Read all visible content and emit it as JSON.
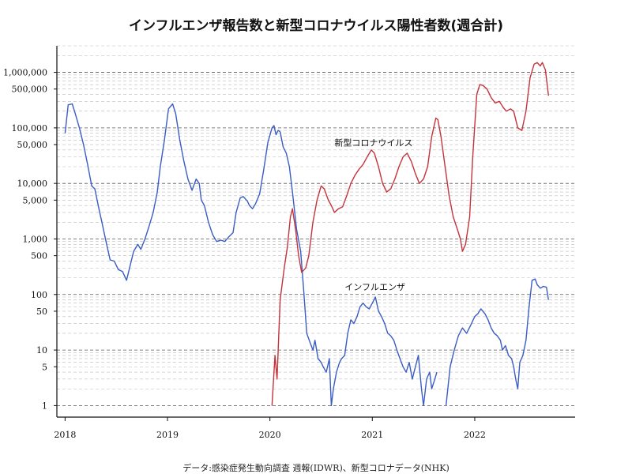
{
  "chart_data": {
    "type": "line",
    "title": "インフルエンザ報告数と新型コロナウイルス陽性者数(週合計)",
    "source": "データ:感染症発生動向調査 週報(IDWR)、新型コロナデータ(NHK)",
    "xlabel": "",
    "ylabel": "",
    "y_scale": "log",
    "ylim": [
      0.62,
      3000000
    ],
    "xlim": [
      2017.92,
      2022.98
    ],
    "grid": "horizontal dashed, major and minor",
    "legend": "inline labels",
    "x_ticks": [
      {
        "value": 2018,
        "label": "2018"
      },
      {
        "value": 2019,
        "label": "2019"
      },
      {
        "value": 2020,
        "label": "2020"
      },
      {
        "value": 2021,
        "label": "2021"
      },
      {
        "value": 2022,
        "label": "2022"
      }
    ],
    "y_ticks": [
      {
        "value": 1,
        "label": "1"
      },
      {
        "value": 5,
        "label": "5"
      },
      {
        "value": 10,
        "label": "10"
      },
      {
        "value": 50,
        "label": "50"
      },
      {
        "value": 100,
        "label": "100"
      },
      {
        "value": 500,
        "label": "500"
      },
      {
        "value": 1000,
        "label": "1,000"
      },
      {
        "value": 5000,
        "label": "5,000"
      },
      {
        "value": 10000,
        "label": "10,000"
      },
      {
        "value": 50000,
        "label": "50,000"
      },
      {
        "value": 100000,
        "label": "100,000"
      },
      {
        "value": 500000,
        "label": "500,000"
      },
      {
        "value": 1000000,
        "label": "1,000,000"
      }
    ],
    "series": [
      {
        "name": "インフルエンザ",
        "color": "#3a5cc5",
        "label_at": [
          2020.73,
          120
        ],
        "points": [
          [
            2018.0,
            80000
          ],
          [
            2018.03,
            260000
          ],
          [
            2018.07,
            270000
          ],
          [
            2018.1,
            180000
          ],
          [
            2018.14,
            100000
          ],
          [
            2018.18,
            50000
          ],
          [
            2018.22,
            22000
          ],
          [
            2018.26,
            9000
          ],
          [
            2018.29,
            8000
          ],
          [
            2018.33,
            3500
          ],
          [
            2018.36,
            2000
          ],
          [
            2018.4,
            900
          ],
          [
            2018.44,
            420
          ],
          [
            2018.48,
            400
          ],
          [
            2018.52,
            280
          ],
          [
            2018.56,
            260
          ],
          [
            2018.6,
            180
          ],
          [
            2018.63,
            300
          ],
          [
            2018.67,
            600
          ],
          [
            2018.71,
            800
          ],
          [
            2018.74,
            650
          ],
          [
            2018.78,
            1000
          ],
          [
            2018.82,
            1700
          ],
          [
            2018.86,
            3000
          ],
          [
            2018.9,
            7000
          ],
          [
            2018.93,
            20000
          ],
          [
            2018.97,
            60000
          ],
          [
            2019.01,
            220000
          ],
          [
            2019.05,
            270000
          ],
          [
            2019.08,
            180000
          ],
          [
            2019.12,
            60000
          ],
          [
            2019.16,
            25000
          ],
          [
            2019.2,
            12000
          ],
          [
            2019.24,
            7500
          ],
          [
            2019.28,
            12000
          ],
          [
            2019.31,
            10000
          ],
          [
            2019.33,
            5000
          ],
          [
            2019.36,
            4000
          ],
          [
            2019.4,
            2000
          ],
          [
            2019.44,
            1200
          ],
          [
            2019.48,
            900
          ],
          [
            2019.52,
            950
          ],
          [
            2019.56,
            900
          ],
          [
            2019.6,
            1100
          ],
          [
            2019.64,
            1300
          ],
          [
            2019.67,
            3000
          ],
          [
            2019.71,
            5500
          ],
          [
            2019.74,
            5800
          ],
          [
            2019.78,
            4800
          ],
          [
            2019.8,
            4000
          ],
          [
            2019.83,
            3500
          ],
          [
            2019.86,
            4300
          ],
          [
            2019.9,
            6500
          ],
          [
            2019.94,
            18000
          ],
          [
            2019.98,
            55000
          ],
          [
            2020.02,
            100000
          ],
          [
            2020.04,
            110000
          ],
          [
            2020.06,
            75000
          ],
          [
            2020.08,
            90000
          ],
          [
            2020.1,
            85000
          ],
          [
            2020.13,
            45000
          ],
          [
            2020.16,
            35000
          ],
          [
            2020.19,
            20000
          ],
          [
            2020.22,
            7000
          ],
          [
            2020.26,
            1500
          ],
          [
            2020.3,
            600
          ],
          [
            2020.33,
            120
          ],
          [
            2020.36,
            20
          ],
          [
            2020.39,
            14
          ],
          [
            2020.42,
            10
          ],
          [
            2020.44,
            15
          ],
          [
            2020.47,
            7
          ],
          [
            2020.5,
            6
          ],
          [
            2020.52,
            5
          ],
          [
            2020.55,
            4
          ],
          [
            2020.58,
            7
          ],
          [
            2020.6,
            1
          ],
          [
            2020.62,
            2
          ],
          [
            2020.65,
            4
          ],
          [
            2020.68,
            6
          ],
          [
            2020.7,
            7
          ],
          [
            2020.73,
            8
          ],
          [
            2020.76,
            20
          ],
          [
            2020.79,
            35
          ],
          [
            2020.82,
            30
          ],
          [
            2020.85,
            40
          ],
          [
            2020.88,
            60
          ],
          [
            2020.91,
            70
          ],
          [
            2020.94,
            60
          ],
          [
            2020.97,
            55
          ],
          [
            2021.0,
            70
          ],
          [
            2021.03,
            90
          ],
          [
            2021.06,
            50
          ],
          [
            2021.09,
            40
          ],
          [
            2021.12,
            30
          ],
          [
            2021.15,
            20
          ],
          [
            2021.18,
            18
          ],
          [
            2021.21,
            15
          ],
          [
            2021.24,
            10
          ],
          [
            2021.27,
            7
          ],
          [
            2021.3,
            5
          ],
          [
            2021.33,
            4
          ],
          [
            2021.36,
            6
          ],
          [
            2021.39,
            3
          ],
          [
            2021.42,
            5
          ],
          [
            2021.45,
            8
          ],
          [
            2021.48,
            2
          ],
          [
            2021.5,
            1
          ],
          [
            2021.53,
            3
          ],
          [
            2021.56,
            4
          ],
          [
            2021.58,
            2
          ],
          [
            2021.61,
            3
          ],
          [
            2021.63,
            4
          ]
        ]
      },
      {
        "name": "インフルエンザ",
        "color": "#3a5cc5",
        "points": [
          [
            2021.72,
            1
          ],
          [
            2021.76,
            5
          ],
          [
            2021.8,
            10
          ],
          [
            2021.84,
            18
          ],
          [
            2021.88,
            25
          ],
          [
            2021.92,
            20
          ],
          [
            2021.96,
            28
          ],
          [
            2022.0,
            40
          ],
          [
            2022.03,
            45
          ],
          [
            2022.06,
            55
          ],
          [
            2022.1,
            45
          ],
          [
            2022.13,
            35
          ],
          [
            2022.16,
            25
          ],
          [
            2022.19,
            20
          ],
          [
            2022.22,
            18
          ],
          [
            2022.25,
            15
          ],
          [
            2022.27,
            10
          ],
          [
            2022.3,
            12
          ],
          [
            2022.33,
            8
          ],
          [
            2022.36,
            7
          ],
          [
            2022.38,
            5
          ],
          [
            2022.4,
            3
          ],
          [
            2022.42,
            2
          ],
          [
            2022.44,
            6
          ],
          [
            2022.47,
            8
          ],
          [
            2022.5,
            15
          ],
          [
            2022.53,
            60
          ],
          [
            2022.56,
            180
          ],
          [
            2022.59,
            190
          ],
          [
            2022.61,
            150
          ],
          [
            2022.64,
            130
          ],
          [
            2022.67,
            140
          ],
          [
            2022.7,
            135
          ],
          [
            2022.72,
            80
          ]
        ]
      },
      {
        "name": "新型コロナウイルス",
        "color": "#c4333b",
        "label_at": [
          2020.63,
          48000
        ],
        "points": [
          [
            2020.02,
            1
          ],
          [
            2020.05,
            8
          ],
          [
            2020.07,
            3
          ],
          [
            2020.1,
            80
          ],
          [
            2020.14,
            300
          ],
          [
            2020.17,
            700
          ],
          [
            2020.2,
            2500
          ],
          [
            2020.22,
            3500
          ],
          [
            2020.25,
            1500
          ],
          [
            2020.28,
            500
          ],
          [
            2020.31,
            250
          ],
          [
            2020.35,
            300
          ],
          [
            2020.38,
            500
          ],
          [
            2020.42,
            2000
          ],
          [
            2020.46,
            5000
          ],
          [
            2020.5,
            9000
          ],
          [
            2020.53,
            8000
          ],
          [
            2020.57,
            5000
          ],
          [
            2020.6,
            4000
          ],
          [
            2020.63,
            3000
          ],
          [
            2020.67,
            3500
          ],
          [
            2020.71,
            3800
          ],
          [
            2020.75,
            6000
          ],
          [
            2020.79,
            10000
          ],
          [
            2020.83,
            14000
          ],
          [
            2020.87,
            18000
          ],
          [
            2020.91,
            22000
          ],
          [
            2020.95,
            30000
          ],
          [
            2020.99,
            40000
          ],
          [
            2021.02,
            35000
          ],
          [
            2021.06,
            20000
          ],
          [
            2021.1,
            10000
          ],
          [
            2021.14,
            7000
          ],
          [
            2021.18,
            8000
          ],
          [
            2021.22,
            12000
          ],
          [
            2021.26,
            20000
          ],
          [
            2021.3,
            30000
          ],
          [
            2021.34,
            35000
          ],
          [
            2021.38,
            25000
          ],
          [
            2021.42,
            15000
          ],
          [
            2021.46,
            10000
          ],
          [
            2021.5,
            12000
          ],
          [
            2021.54,
            20000
          ],
          [
            2021.58,
            70000
          ],
          [
            2021.62,
            150000
          ],
          [
            2021.64,
            140000
          ],
          [
            2021.67,
            70000
          ],
          [
            2021.71,
            20000
          ],
          [
            2021.75,
            6000
          ],
          [
            2021.79,
            2500
          ],
          [
            2021.83,
            1500
          ],
          [
            2021.86,
            1000
          ],
          [
            2021.88,
            600
          ],
          [
            2021.91,
            800
          ],
          [
            2021.95,
            2500
          ],
          [
            2021.98,
            30000
          ],
          [
            2022.02,
            400000
          ],
          [
            2022.05,
            600000
          ],
          [
            2022.08,
            580000
          ],
          [
            2022.12,
            500000
          ],
          [
            2022.16,
            350000
          ],
          [
            2022.2,
            280000
          ],
          [
            2022.24,
            300000
          ],
          [
            2022.28,
            230000
          ],
          [
            2022.31,
            200000
          ],
          [
            2022.35,
            220000
          ],
          [
            2022.38,
            200000
          ],
          [
            2022.42,
            100000
          ],
          [
            2022.46,
            90000
          ],
          [
            2022.5,
            200000
          ],
          [
            2022.54,
            800000
          ],
          [
            2022.58,
            1400000
          ],
          [
            2022.61,
            1500000
          ],
          [
            2022.64,
            1300000
          ],
          [
            2022.66,
            1500000
          ],
          [
            2022.69,
            1100000
          ],
          [
            2022.72,
            380000
          ]
        ]
      }
    ]
  }
}
